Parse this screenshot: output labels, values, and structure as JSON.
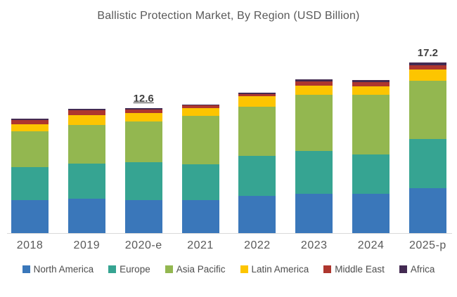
{
  "title": "Ballistic Protection Market, By Region (USD Billion)",
  "chart_data": {
    "type": "bar",
    "stacked": true,
    "unit": "USD Billion",
    "title": "Ballistic Protection Market, By Region (USD Billion)",
    "xlabel": "",
    "ylabel": "",
    "ylim": [
      0,
      18
    ],
    "grid": false,
    "legend_position": "bottom",
    "categories": [
      "2018",
      "2019",
      "2020-e",
      "2021",
      "2022",
      "2023",
      "2024",
      "2025-p"
    ],
    "series": [
      {
        "name": "North America",
        "color": "#3a77ba",
        "values": [
          3.33,
          3.45,
          3.32,
          3.32,
          3.76,
          3.95,
          3.97,
          4.51
        ]
      },
      {
        "name": "Europe",
        "color": "#36a492",
        "values": [
          3.31,
          3.55,
          3.83,
          3.66,
          4.08,
          4.37,
          3.95,
          5.0
        ]
      },
      {
        "name": "Asia Pacific",
        "color": "#93b750",
        "values": [
          3.64,
          3.92,
          4.12,
          4.84,
          4.96,
          5.67,
          6.03,
          5.87
        ]
      },
      {
        "name": "Latin America",
        "color": "#fdc500",
        "values": [
          0.68,
          0.99,
          0.84,
          0.82,
          1.05,
          0.94,
          0.87,
          1.11
        ]
      },
      {
        "name": "Middle East",
        "color": "#ae362e",
        "values": [
          0.45,
          0.47,
          0.38,
          0.25,
          0.21,
          0.4,
          0.43,
          0.43
        ]
      },
      {
        "name": "Africa",
        "color": "#432a52",
        "values": [
          0.12,
          0.14,
          0.11,
          0.12,
          0.1,
          0.23,
          0.19,
          0.28
        ]
      }
    ],
    "annotations": [
      {
        "category": "2020-e",
        "label": "12.6",
        "underline": true
      },
      {
        "category": "2025-p",
        "label": "17.2",
        "underline": false
      }
    ],
    "totals_shown": {
      "2020-e": 12.6,
      "2025-p": 17.2
    },
    "axis_line_color": "#d9d9d9",
    "text_color": "#595959"
  }
}
